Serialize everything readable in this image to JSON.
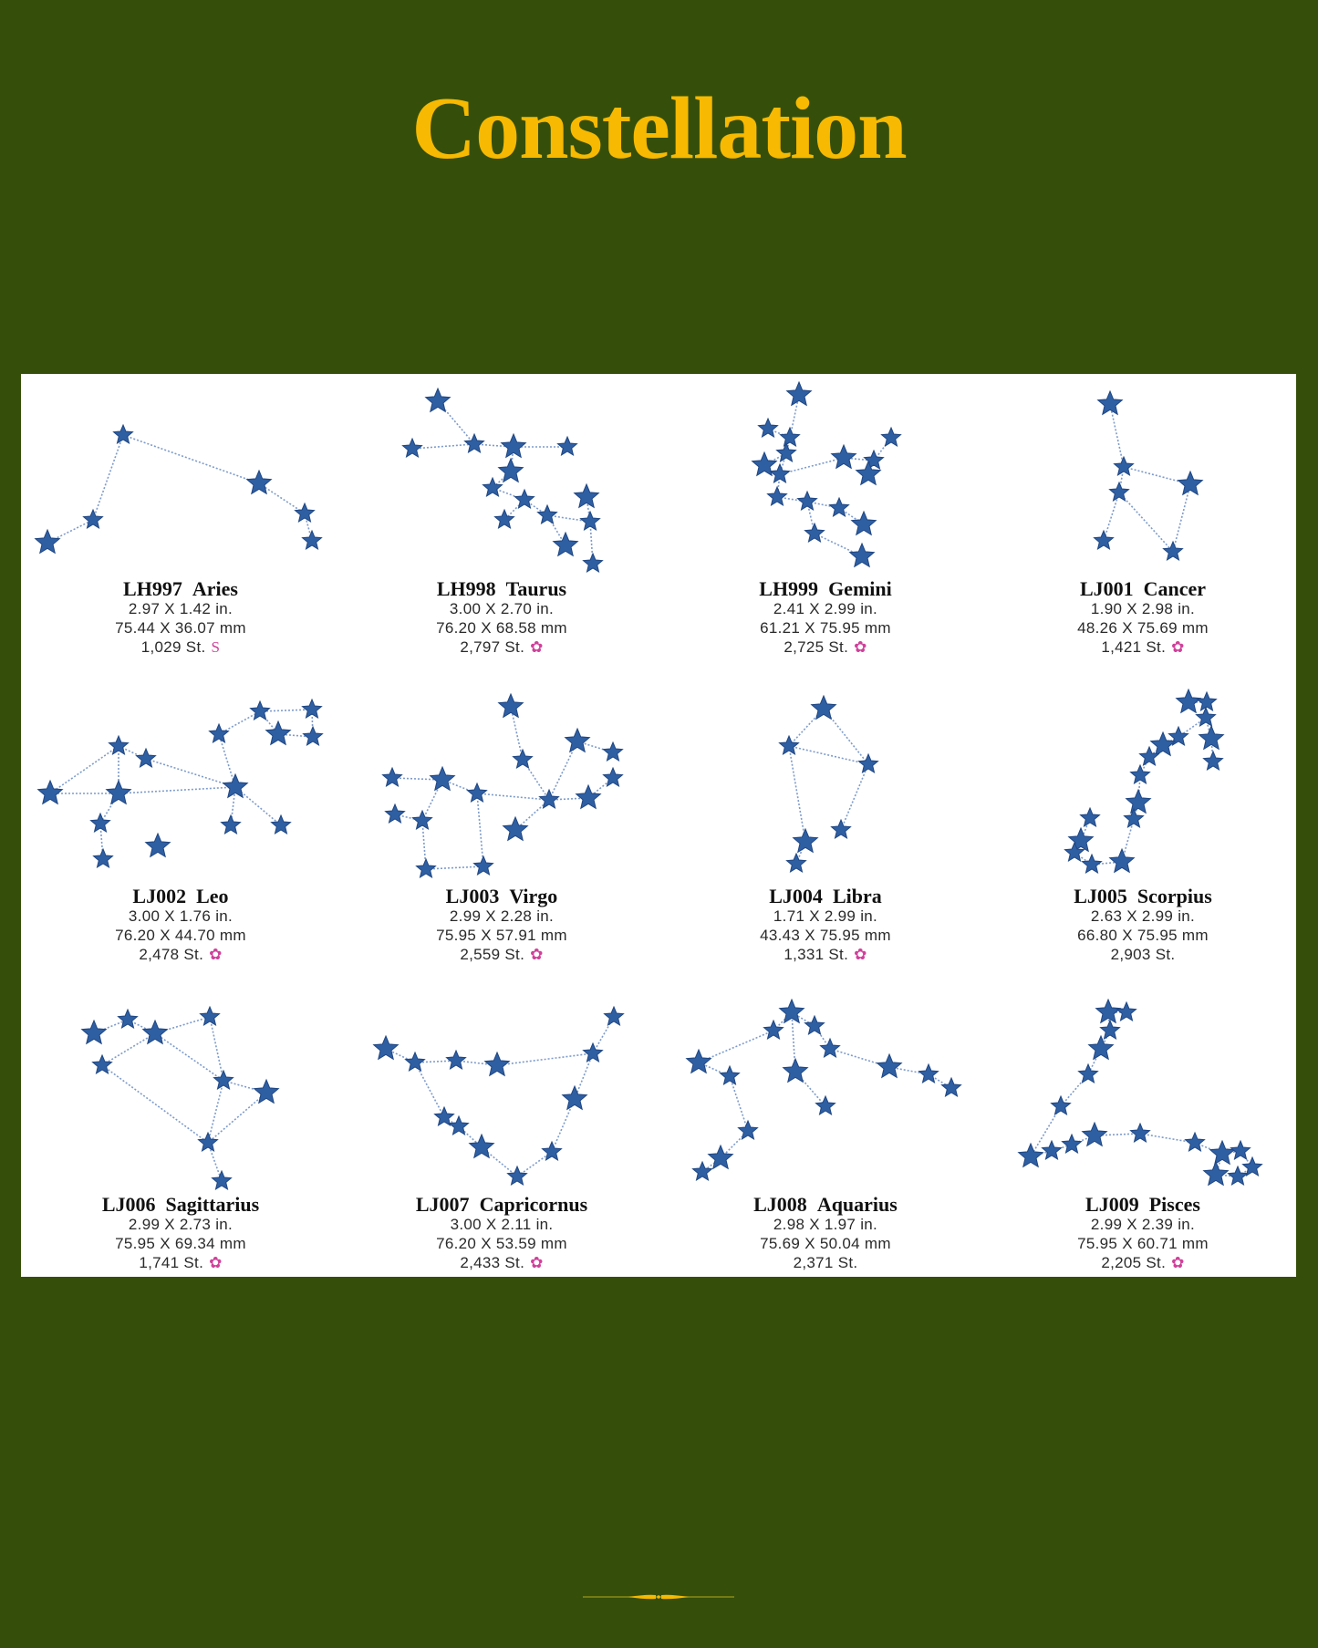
{
  "title": "Constellation",
  "colors": {
    "background": "#354f0a",
    "title": "#f7b901",
    "star": "#2f5fa3",
    "mark": "#d0409a"
  },
  "items": [
    {
      "code": "LH997",
      "name": "Aries",
      "inches": "2.97 X 1.42 in.",
      "mm": "75.44 X 36.07 mm",
      "stitches": "1,029 St.",
      "mark": "S"
    },
    {
      "code": "LH998",
      "name": "Taurus",
      "inches": "3.00 X 2.70 in.",
      "mm": "76.20 X 68.58 mm",
      "stitches": "2,797 St.",
      "mark": "✿"
    },
    {
      "code": "LH999",
      "name": "Gemini",
      "inches": "2.41 X 2.99 in.",
      "mm": "61.21 X 75.95 mm",
      "stitches": "2,725 St.",
      "mark": "✿"
    },
    {
      "code": "LJ001",
      "name": "Cancer",
      "inches": "1.90 X 2.98 in.",
      "mm": "48.26 X 75.69 mm",
      "stitches": "1,421 St.",
      "mark": "✿"
    },
    {
      "code": "LJ002",
      "name": "Leo",
      "inches": "3.00 X 1.76 in.",
      "mm": "76.20 X 44.70 mm",
      "stitches": "2,478 St.",
      "mark": "✿"
    },
    {
      "code": "LJ003",
      "name": "Virgo",
      "inches": "2.99 X 2.28 in.",
      "mm": "75.95 X 57.91 mm",
      "stitches": "2,559 St.",
      "mark": "✿"
    },
    {
      "code": "LJ004",
      "name": "Libra",
      "inches": "1.71 X 2.99 in.",
      "mm": "43.43 X 75.95 mm",
      "stitches": "1,331 St.",
      "mark": "✿"
    },
    {
      "code": "LJ005",
      "name": "Scorpius",
      "inches": "2.63 X 2.99 in.",
      "mm": "66.80 X 75.95 mm",
      "stitches": "2,903 St.",
      "mark": ""
    },
    {
      "code": "LJ006",
      "name": "Sagittarius",
      "inches": "2.99 X 2.73 in.",
      "mm": "75.95 X 69.34 mm",
      "stitches": "1,741 St.",
      "mark": "✿"
    },
    {
      "code": "LJ007",
      "name": "Capricornus",
      "inches": "3.00 X 2.11 in.",
      "mm": "76.20 X 53.59 mm",
      "stitches": "2,433 St.",
      "mark": "✿"
    },
    {
      "code": "LJ008",
      "name": "Aquarius",
      "inches": "2.98 X 1.97 in.",
      "mm": "75.69 X 50.04 mm",
      "stitches": "2,371 St.",
      "mark": ""
    },
    {
      "code": "LJ009",
      "name": "Pisces",
      "inches": "2.99 X 2.39 in.",
      "mm": "75.95 X 60.71 mm",
      "stitches": "2,205 St.",
      "mark": "✿"
    }
  ]
}
